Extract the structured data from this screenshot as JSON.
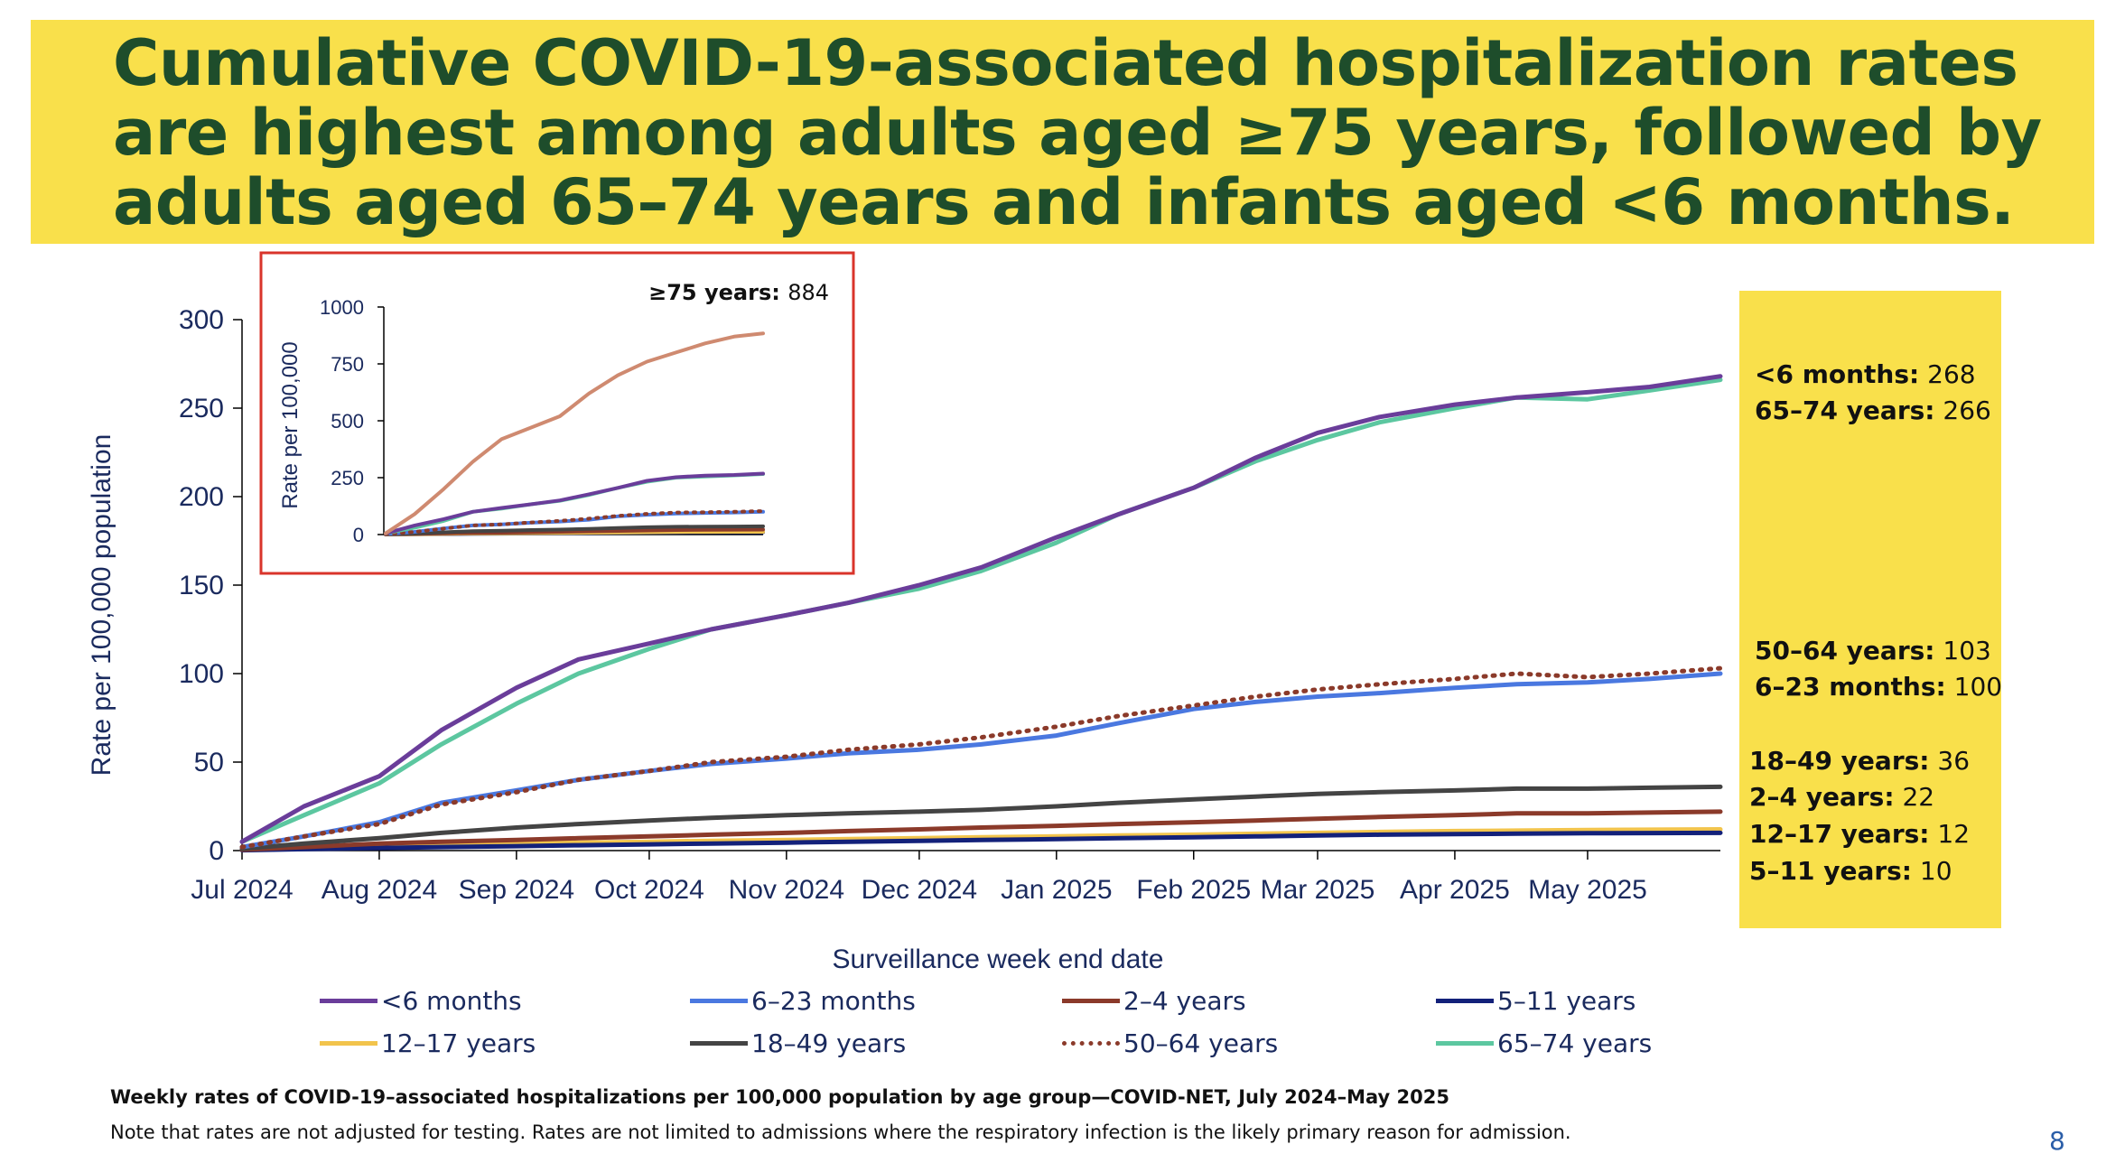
{
  "slide": {
    "title": "Cumulative COVID-19-associated hospitalization rates are highest among adults aged ≥75 years, followed by adults aged 65–74 years and infants aged <6 months.",
    "footnote_title": "Weekly rates of COVID-19–associated hospitalizations per 100,000 population by age group—COVID-NET, July 2024–May 2025",
    "footnote_note": "Note that rates are not adjusted for testing. Rates are not limited to admissions where the respiratory infection is the likely primary reason for admission.",
    "page_number": "8"
  },
  "callouts": [
    {
      "label": "<6 months:",
      "value": "268"
    },
    {
      "label": "65–74 years:",
      "value": "266"
    },
    {
      "label": "50–64 years:",
      "value": "103"
    },
    {
      "label": "6–23 months:",
      "value": "100"
    },
    {
      "label": "18–49 years:",
      "value": "36"
    },
    {
      "label": "2–4 years:",
      "value": "22"
    },
    {
      "label": "12–17 years:",
      "value": "12"
    },
    {
      "label": "5–11 years:",
      "value": "10"
    }
  ],
  "colors": {
    "under_6_months": "#6a3d9a",
    "m6_23": "#4a78e0",
    "y2_4": "#8b3a2a",
    "y5_11": "#13217a",
    "y12_17": "#f2c44c",
    "y18_49": "#444444",
    "y50_64": "#8b3a2a",
    "y65_74": "#5cc7a0",
    "y75_plus": "#cf8a70",
    "axis_text": "#1a2a5e",
    "inset_border": "#d9342b"
  },
  "chart_data": [
    {
      "type": "line",
      "title": "",
      "xlabel": "Surveillance week end date",
      "ylabel": "Rate per 100,000 population",
      "ylim": [
        0,
        300
      ],
      "yticks": [
        0,
        50,
        100,
        150,
        200,
        250,
        300
      ],
      "x_tick_labels": [
        "Jul 2024",
        "Aug 2024",
        "Sep 2024",
        "Oct 2024",
        "Nov 2024",
        "Dec 2024",
        "Jan 2025",
        "Feb 2025",
        "Mar 2025",
        "Apr 2025",
        "May 2025"
      ],
      "x_tick_dates": [
        "2024-07-01",
        "2024-08-01",
        "2024-09-01",
        "2024-10-01",
        "2024-11-01",
        "2024-12-01",
        "2025-01-01",
        "2025-02-01",
        "2025-03-01",
        "2025-04-01",
        "2025-05-01"
      ],
      "x": [
        "2024-07-01",
        "2024-07-15",
        "2024-08-01",
        "2024-08-15",
        "2024-09-01",
        "2024-09-15",
        "2024-10-01",
        "2024-10-15",
        "2024-11-01",
        "2024-11-15",
        "2024-12-01",
        "2024-12-15",
        "2025-01-01",
        "2025-01-15",
        "2025-02-01",
        "2025-02-15",
        "2025-03-01",
        "2025-03-15",
        "2025-04-01",
        "2025-04-15",
        "2025-05-01",
        "2025-05-15",
        "2025-05-31"
      ],
      "legend_position": "bottom",
      "grid": false,
      "series": [
        {
          "name": "<6 months",
          "color": "#6a3d9a",
          "style": "solid",
          "values": [
            5,
            25,
            42,
            68,
            92,
            108,
            117,
            125,
            133,
            140,
            150,
            160,
            177,
            190,
            205,
            222,
            236,
            245,
            252,
            256,
            259,
            262,
            268
          ]
        },
        {
          "name": "6–23 months",
          "color": "#4a78e0",
          "style": "solid",
          "values": [
            2,
            8,
            16,
            27,
            34,
            40,
            45,
            49,
            52,
            55,
            57,
            60,
            65,
            72,
            80,
            84,
            87,
            89,
            92,
            94,
            95,
            97,
            100
          ]
        },
        {
          "name": "2–4 years",
          "color": "#8b3a2a",
          "style": "solid",
          "values": [
            0.5,
            2,
            4,
            5,
            6,
            7,
            8,
            9,
            10,
            11,
            12,
            13,
            14,
            15,
            16,
            17,
            18,
            19,
            20,
            21,
            21,
            21.5,
            22
          ]
        },
        {
          "name": "5–11 years",
          "color": "#13217a",
          "style": "solid",
          "values": [
            0.2,
            0.8,
            1.5,
            2,
            2.5,
            3,
            3.5,
            4,
            4.5,
            5,
            5.5,
            6,
            6.5,
            7,
            7.5,
            8,
            8.5,
            9,
            9.3,
            9.6,
            9.8,
            9.9,
            10
          ]
        },
        {
          "name": "12–17 years",
          "color": "#f2c44c",
          "style": "solid",
          "values": [
            0.3,
            1,
            2,
            3,
            4,
            4.5,
            5,
            5.5,
            6,
            6.5,
            7,
            7.5,
            8,
            8.5,
            9,
            9.5,
            10,
            10.5,
            11,
            11.3,
            11.6,
            11.8,
            12
          ]
        },
        {
          "name": "18–49 years",
          "color": "#444444",
          "style": "solid",
          "values": [
            1,
            4,
            7,
            10,
            13,
            15,
            17,
            18.5,
            20,
            21,
            22,
            23,
            25,
            27,
            29,
            30.5,
            32,
            33,
            34,
            35,
            35,
            35.5,
            36
          ]
        },
        {
          "name": "50–64 years",
          "color": "#8b3a2a",
          "style": "dotted",
          "values": [
            2,
            8,
            15,
            26,
            33,
            40,
            45,
            50,
            53,
            57,
            60,
            64,
            70,
            76,
            82,
            87,
            91,
            94,
            97,
            100,
            98,
            100,
            103
          ]
        },
        {
          "name": "65–74 years",
          "color": "#5cc7a0",
          "style": "solid",
          "values": [
            5,
            20,
            38,
            60,
            83,
            100,
            114,
            125,
            133,
            140,
            148,
            158,
            174,
            190,
            205,
            220,
            232,
            242,
            250,
            256,
            255,
            260,
            266
          ]
        }
      ]
    },
    {
      "type": "line",
      "title": "",
      "xlabel": "",
      "ylabel": "Rate per 100,000",
      "ylim": [
        0,
        1000
      ],
      "yticks": [
        0,
        250,
        500,
        750,
        1000
      ],
      "annotation": {
        "label": "≥75 years:",
        "value": "884"
      },
      "series_values_note": "",
      "series": [
        {
          "name": "≥75 years",
          "color": "#cf8a70",
          "style": "solid",
          "values": [
            5,
            90,
            200,
            320,
            420,
            470,
            520,
            620,
            700,
            760,
            800,
            840,
            870,
            884
          ]
        },
        {
          "name": "<6 months",
          "color": "#6a3d9a",
          "style": "solid",
          "values": [
            5,
            40,
            68,
            100,
            117,
            133,
            150,
            177,
            205,
            236,
            252,
            259,
            262,
            268
          ]
        },
        {
          "name": "65–74 years",
          "color": "#5cc7a0",
          "style": "solid",
          "values": [
            5,
            30,
            60,
            100,
            114,
            133,
            148,
            174,
            205,
            232,
            250,
            255,
            260,
            266
          ]
        },
        {
          "name": "50–64 years",
          "color": "#8b3a2a",
          "style": "dotted",
          "values": [
            2,
            12,
            26,
            40,
            45,
            53,
            60,
            70,
            82,
            91,
            97,
            98,
            100,
            103
          ]
        },
        {
          "name": "6–23 months",
          "color": "#4a78e0",
          "style": "solid",
          "values": [
            2,
            12,
            27,
            40,
            45,
            52,
            57,
            65,
            80,
            87,
            92,
            95,
            97,
            100
          ]
        },
        {
          "name": "18–49 years",
          "color": "#444444",
          "style": "solid",
          "values": [
            1,
            5,
            10,
            15,
            17,
            20,
            22,
            25,
            29,
            32,
            34,
            35,
            35.5,
            36
          ]
        },
        {
          "name": "2–4 years",
          "color": "#8b3a2a",
          "style": "solid",
          "values": [
            0.5,
            3,
            5,
            7,
            8,
            10,
            12,
            14,
            16,
            18,
            20,
            21,
            21.5,
            22
          ]
        },
        {
          "name": "12–17 years",
          "color": "#f2c44c",
          "style": "solid",
          "values": [
            0.3,
            1.5,
            3,
            4.5,
            5,
            6,
            7,
            8,
            9,
            10,
            11,
            11.6,
            11.8,
            12
          ]
        },
        {
          "name": "5–11 years",
          "color": "#13217a",
          "style": "solid",
          "values": [
            0.2,
            1,
            2,
            3,
            3.5,
            4.5,
            5.5,
            6.5,
            7.5,
            8.5,
            9.3,
            9.8,
            9.9,
            10
          ]
        }
      ]
    }
  ]
}
